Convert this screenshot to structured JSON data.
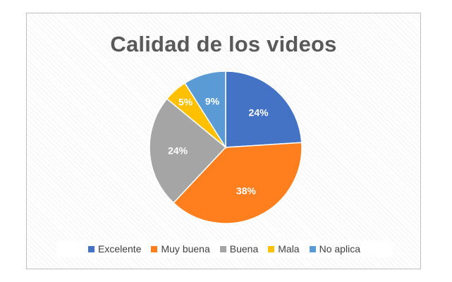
{
  "chart_data": {
    "type": "pie",
    "title": "Calidad de los videos",
    "categories": [
      "Excelente",
      "Muy buena",
      "Buena",
      "Mala",
      "No aplica"
    ],
    "values": [
      24,
      38,
      24,
      5,
      9
    ],
    "labels": [
      "24%",
      "38%",
      "24%",
      "5%",
      "9%"
    ],
    "colors": [
      "#4472C4",
      "#FF7F1E",
      "#A5A5A5",
      "#FFC000",
      "#5B9BD5"
    ],
    "legend": "bottom"
  }
}
